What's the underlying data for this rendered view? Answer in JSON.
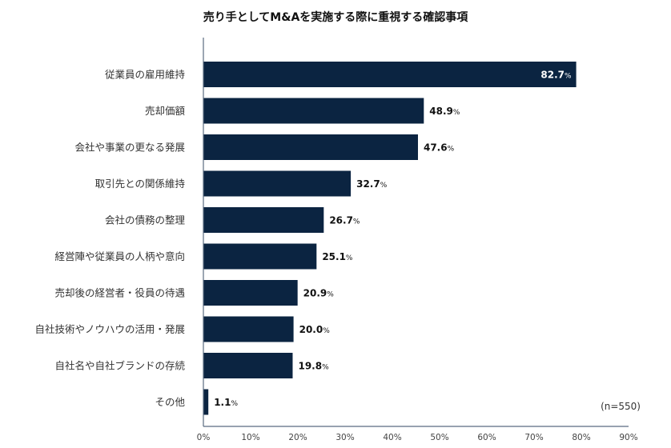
{
  "chart_data": {
    "type": "bar",
    "orientation": "horizontal",
    "title": "売り手としてM&Aを実施する際に重視する確認事項",
    "categories": [
      "従業員の雇用維持",
      "売却価額",
      "会社や事業の更なる発展",
      "取引先との関係維持",
      "会社の債務の整理",
      "経営陣や従業員の人柄や意向",
      "売却後の経営者・役員の待遇",
      "自社技術やノウハウの活用・発展",
      "自社名や自社ブランドの存続",
      "その他"
    ],
    "values": [
      82.7,
      48.9,
      47.6,
      32.7,
      26.7,
      25.1,
      20.9,
      20.0,
      19.8,
      1.1
    ],
    "value_suffix": "%",
    "xlim": [
      0,
      90
    ],
    "xticks": [
      "0%",
      "10%",
      "20%",
      "30%",
      "40%",
      "50%",
      "60%",
      "70%",
      "80%",
      "90%"
    ],
    "grid": false,
    "legend": "none",
    "note": "(n=550)",
    "colors": {
      "bar": "#0b2441",
      "axis": "#5a6b80",
      "inside_label": "#ffffff"
    }
  }
}
